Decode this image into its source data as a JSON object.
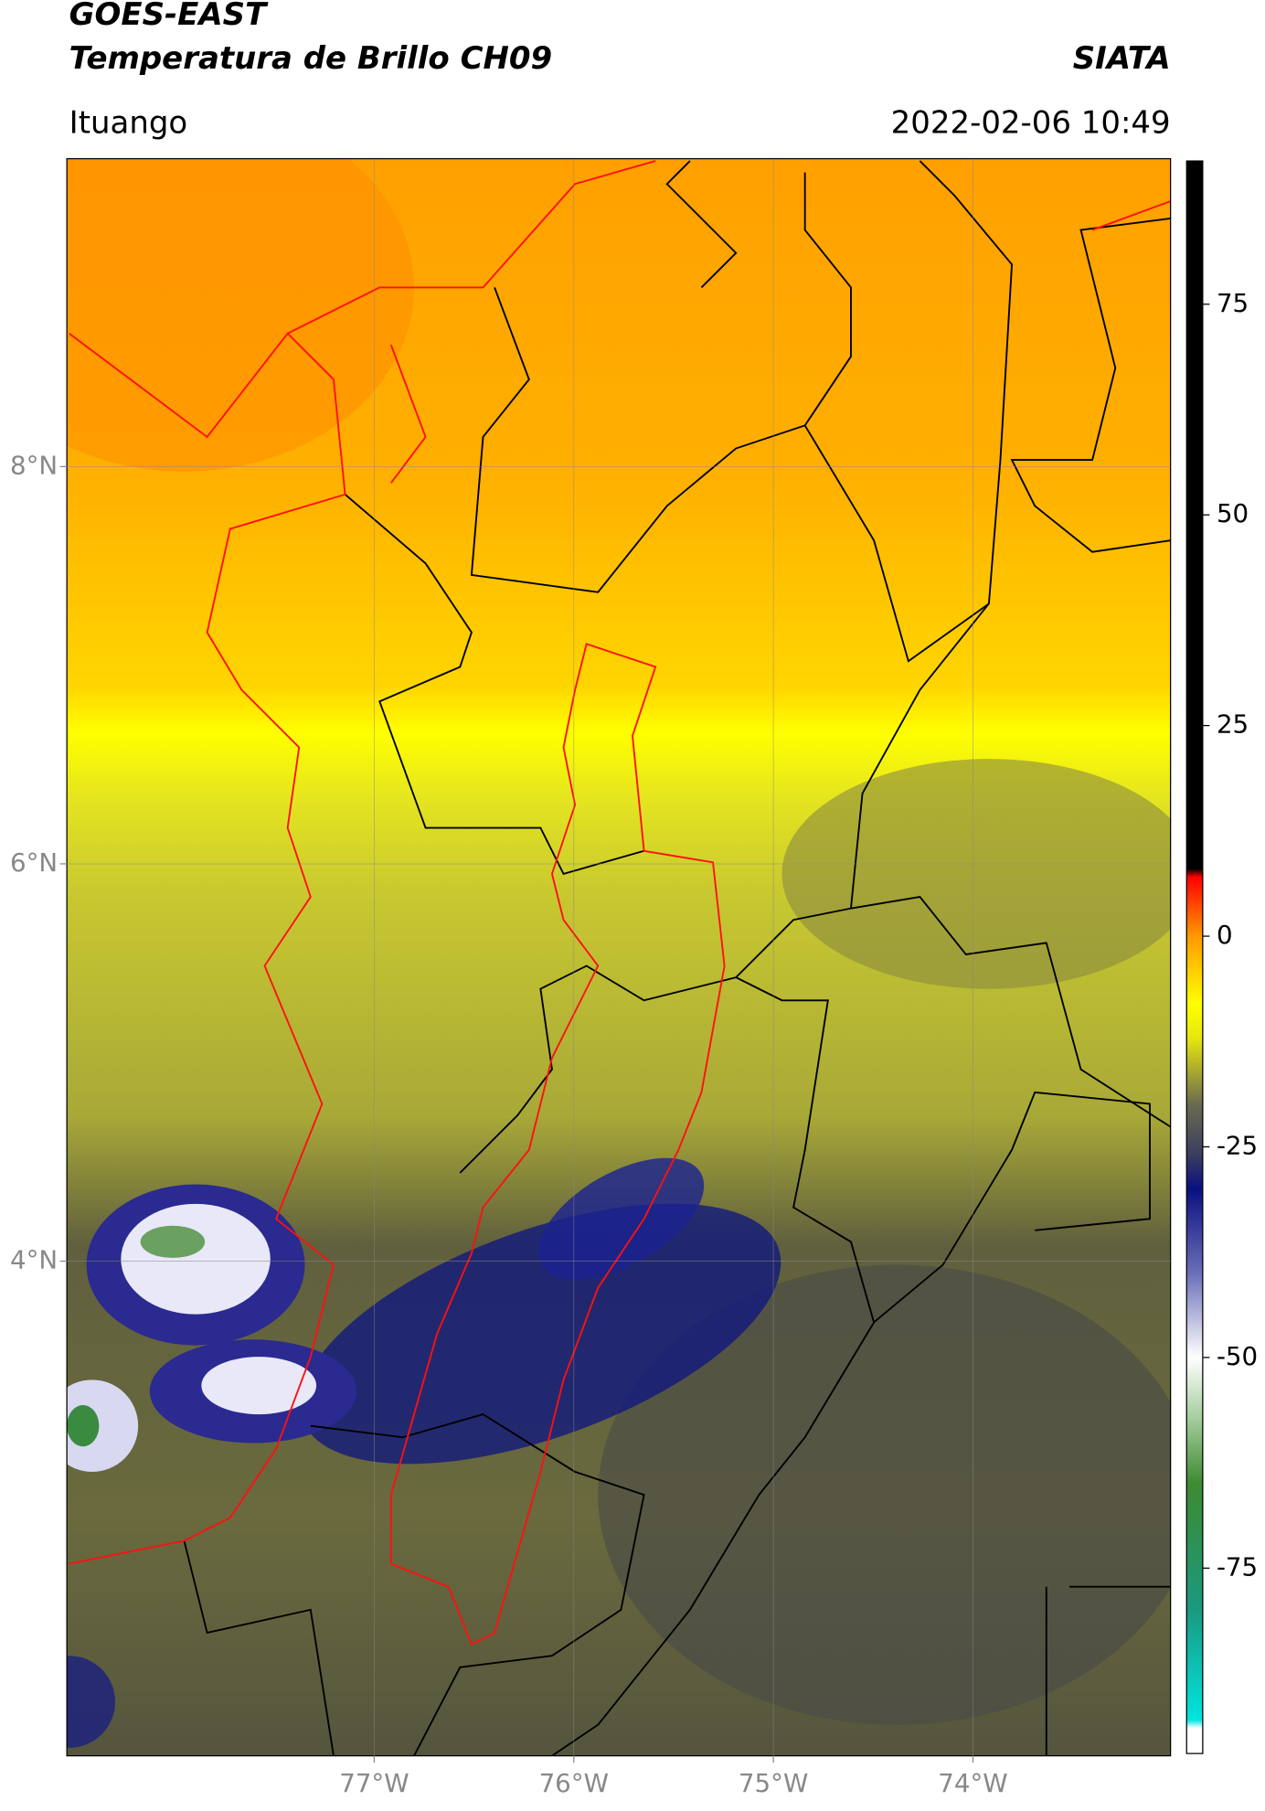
{
  "header": {
    "title_line1": "GOES-EAST",
    "title_line2": "Temperatura de Brillo CH09",
    "org": "SIATA",
    "location": "Ituango",
    "datetime": "2022-02-06 10:49"
  },
  "map": {
    "lonlim": [
      -78.54,
      -73.01
    ],
    "latlim": [
      1.51,
      9.55
    ],
    "lon_ticks": [
      {
        "value": -77,
        "label": "77°W"
      },
      {
        "value": -76,
        "label": "76°W"
      },
      {
        "value": -75,
        "label": "75°W"
      },
      {
        "value": -74,
        "label": "74°W"
      }
    ],
    "lat_ticks": [
      {
        "value": 8,
        "label": "8°N"
      },
      {
        "value": 6,
        "label": "6°N"
      },
      {
        "value": 4,
        "label": "4°N"
      }
    ],
    "grid": true
  },
  "colorbar": {
    "lim": [
      -97,
      92
    ],
    "ticks": [
      75,
      50,
      25,
      0,
      -25,
      -50,
      -75
    ],
    "stops": [
      {
        "value": -97,
        "color": "#ffffff"
      },
      {
        "value": -94,
        "color": "#ffffff"
      },
      {
        "value": -93,
        "color": "#00e5e0"
      },
      {
        "value": -80,
        "color": "#1a9a80"
      },
      {
        "value": -65,
        "color": "#3d8a30"
      },
      {
        "value": -57,
        "color": "#a8cfa0"
      },
      {
        "value": -50,
        "color": "#ffffff"
      },
      {
        "value": -40,
        "color": "#6a6fb8"
      },
      {
        "value": -30,
        "color": "#0a1080"
      },
      {
        "value": -26,
        "color": "#3a3d60"
      },
      {
        "value": -20,
        "color": "#6a6a50"
      },
      {
        "value": -12,
        "color": "#e8e810"
      },
      {
        "value": -8,
        "color": "#ffff00"
      },
      {
        "value": 0,
        "color": "#ff9900"
      },
      {
        "value": 7,
        "color": "#ff0000"
      },
      {
        "value": 8,
        "color": "#000000"
      },
      {
        "value": 92,
        "color": "#000000"
      }
    ]
  }
}
